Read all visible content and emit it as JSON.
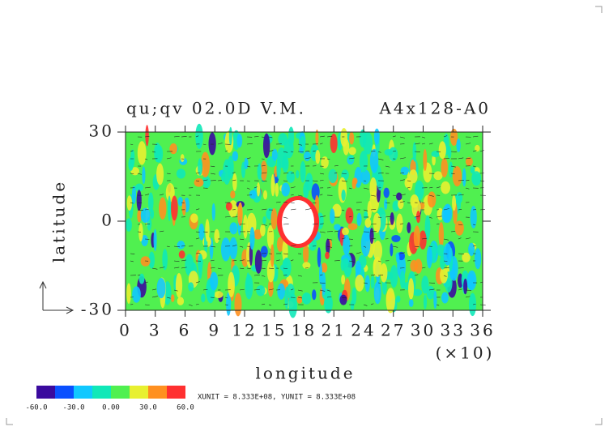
{
  "chart_data": {
    "type": "contour",
    "title": "qu;qv 02.0D V.M.",
    "subtitle": "A4x128-A0",
    "x_label": "longitude",
    "x_scale_note": "(×10)",
    "y_label": "latitude",
    "xlim": [
      0,
      36
    ],
    "xticks": [
      0,
      3,
      6,
      9,
      12,
      15,
      18,
      21,
      24,
      27,
      30,
      33,
      36
    ],
    "ylim": [
      -30,
      30
    ],
    "yticks": [
      -30,
      0,
      30
    ],
    "colorbar": {
      "levels": [
        -60,
        -45,
        -30,
        -15,
        0,
        15,
        30,
        45,
        60
      ],
      "colors": [
        "#3a0a9e",
        "#0a50ff",
        "#10c8ff",
        "#10e8b8",
        "#50f050",
        "#e8f030",
        "#ff9020",
        "#ff3030"
      ],
      "ticks": [
        {
          "value": -60,
          "label": "-60.0"
        },
        {
          "value": -30,
          "label": "-30.0"
        },
        {
          "value": 0,
          "label": "0.00"
        },
        {
          "value": 30,
          "label": "30.0"
        },
        {
          "value": 60,
          "label": "60.0"
        }
      ]
    },
    "unit_note": "XUNIT = 8.333E+08, YUNIT = 8.333E+08"
  }
}
